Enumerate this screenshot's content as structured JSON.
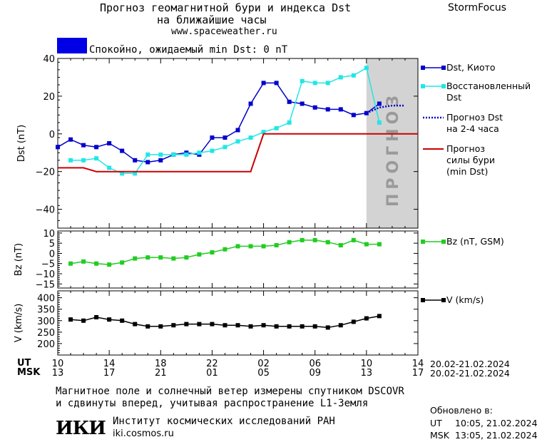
{
  "header": {
    "title_line1": "Прогноз геомагнитной бури и индекса Dst",
    "title_line2": "на ближайшие часы",
    "url": "www.spaceweather.ru",
    "brand": "StormFocus"
  },
  "status": {
    "text": "Спокойно, ожидаемый min Dst: 0 nT",
    "color": "#0000e6"
  },
  "forecast_label": "ПРОГНОЗ",
  "colors": {
    "dst_kyoto": "#0000cc",
    "dst_restored": "#22e6e6",
    "dst_forecast": "#0000cc",
    "storm_forecast": "#cc0000",
    "bz": "#22cc22",
    "v": "#000000",
    "forecast_band": "#d3d3d3"
  },
  "legend": {
    "dst_kyoto": "Dst, Киото",
    "dst_restored": [
      "Восстановленный",
      "Dst"
    ],
    "dst_forecast": [
      "Прогноз Dst",
      "на 2-4 часа"
    ],
    "storm_forecast": [
      "Прогноз",
      "силы бури",
      "(min Dst)"
    ],
    "bz": "Bz (nT, GSM)",
    "v": "V (km/s)"
  },
  "time_axis": {
    "ut_label": "UT",
    "msk_label": "MSK",
    "ut_ticks": [
      "10",
      "14",
      "18",
      "22",
      "02",
      "06",
      "10",
      "14"
    ],
    "msk_ticks": [
      "13",
      "17",
      "21",
      "01",
      "05",
      "09",
      "13",
      "17"
    ],
    "ut_range": "20.02-21.02.2024",
    "msk_range": "20.02-21.02.2024"
  },
  "chart_data": [
    {
      "type": "line",
      "ylabel": "Dst (nT)",
      "ylim": [
        -50,
        40
      ],
      "yticks": [
        "40",
        "20",
        "0",
        "−20",
        "−40"
      ],
      "ytick_values": [
        40,
        20,
        0,
        -20,
        -40
      ],
      "xlim": [
        0,
        28
      ],
      "x_unit": "hours since 10 UT 20.02.2024",
      "series": [
        {
          "name": "Dst, Киото",
          "x": [
            0,
            1,
            2,
            3,
            4,
            5,
            6,
            7,
            8,
            9,
            10,
            11,
            12,
            13,
            14,
            15,
            16,
            17,
            18,
            19,
            20,
            21,
            22,
            23,
            24,
            25
          ],
          "values": [
            -7,
            -3,
            -6,
            -7,
            -5,
            -9,
            -14,
            -15,
            -14,
            -11,
            -10,
            -11,
            -2,
            -2,
            2,
            16,
            27,
            27,
            17,
            16,
            14,
            13,
            13,
            10,
            11,
            16
          ]
        },
        {
          "name": "Восстановленный Dst",
          "x": [
            1,
            2,
            3,
            4,
            5,
            6,
            7,
            8,
            9,
            10,
            11,
            12,
            13,
            14,
            15,
            16,
            17,
            18,
            19,
            20,
            21,
            22,
            23,
            24,
            25
          ],
          "values": [
            -14,
            -14,
            -13,
            -18,
            -21,
            -21,
            -11,
            -11,
            -11,
            -11,
            -10,
            -9,
            -7,
            -4,
            -2,
            1,
            3,
            6,
            28,
            27,
            27,
            30,
            31,
            35,
            6
          ]
        },
        {
          "name": "Прогноз Dst на 2-4 часа",
          "x": [
            24,
            25,
            26,
            27
          ],
          "values": [
            11,
            14,
            15,
            15
          ]
        },
        {
          "name": "Прогноз силы бури (min Dst)",
          "x": [
            0,
            2,
            3,
            15,
            16,
            28
          ],
          "values": [
            -18,
            -18,
            -20,
            -20,
            0,
            0
          ]
        }
      ],
      "forecast_region": [
        24,
        28
      ]
    },
    {
      "type": "line",
      "ylabel": "Bz (nT)",
      "ylim": [
        -17,
        11
      ],
      "yticks": [
        "10",
        "5",
        "0",
        "−5",
        "−10",
        "−15"
      ],
      "ytick_values": [
        10,
        5,
        0,
        -5,
        -10,
        -15
      ],
      "xlim": [
        0,
        28
      ],
      "series": [
        {
          "name": "Bz (nT, GSM)",
          "x": [
            1,
            2,
            3,
            4,
            5,
            6,
            7,
            8,
            9,
            10,
            11,
            12,
            13,
            14,
            15,
            16,
            17,
            18,
            19,
            20,
            21,
            22,
            23,
            24,
            25
          ],
          "values": [
            -5,
            -4,
            -5,
            -5.5,
            -4.5,
            -2.5,
            -2,
            -2,
            -2.5,
            -2,
            -0.5,
            0.5,
            2,
            3.5,
            3.5,
            3.5,
            4,
            5.5,
            6.5,
            6.5,
            5.5,
            4,
            6.5,
            4.5,
            4.5
          ]
        }
      ]
    },
    {
      "type": "line",
      "ylabel": "V (km/s)",
      "ylim": [
        150,
        430
      ],
      "yticks": [
        "400",
        "350",
        "300",
        "250",
        "200"
      ],
      "ytick_values": [
        400,
        350,
        300,
        250,
        200
      ],
      "xlim": [
        0,
        28
      ],
      "series": [
        {
          "name": "V (km/s)",
          "x": [
            1,
            2,
            3,
            4,
            5,
            6,
            7,
            8,
            9,
            10,
            11,
            12,
            13,
            14,
            15,
            16,
            17,
            18,
            19,
            20,
            21,
            22,
            23,
            24,
            25
          ],
          "values": [
            305,
            300,
            315,
            305,
            300,
            285,
            275,
            275,
            280,
            285,
            285,
            285,
            280,
            280,
            275,
            280,
            275,
            275,
            275,
            275,
            270,
            280,
            295,
            310,
            320
          ]
        }
      ]
    }
  ],
  "footer": {
    "note_line1": "Магнитное поле и солнечный ветер измерены спутником DSCOVR",
    "note_line2": "и сдвинуты вперед, учитывая распространение L1-Земля",
    "logo": "ИКИ",
    "institute": "Институт космических исследований РАН",
    "institute_url": "iki.cosmos.ru",
    "updated_title": "Обновлено в:",
    "updated_ut_label": "UT",
    "updated_ut": "10:05, 21.02.2024",
    "updated_msk_label": "MSK",
    "updated_msk": "13:05, 21.02.2024"
  }
}
